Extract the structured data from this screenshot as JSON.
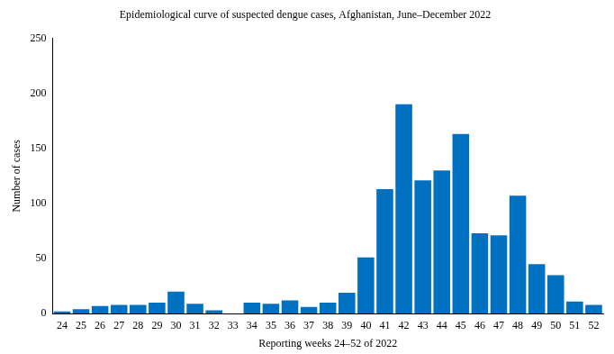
{
  "chart_data": {
    "type": "bar",
    "title": "Epidemiological curve of suspected dengue cases, Afghanistan, June–December 2022",
    "x_label": "Reporting weeks 24–52 of 2022",
    "y_label": "Number of cases",
    "categories": [
      "24",
      "25",
      "26",
      "27",
      "28",
      "29",
      "30",
      "31",
      "32",
      "33",
      "34",
      "35",
      "36",
      "37",
      "38",
      "39",
      "40",
      "41",
      "42",
      "43",
      "44",
      "45",
      "46",
      "47",
      "48",
      "49",
      "50",
      "51",
      "52"
    ],
    "values": [
      2,
      4,
      7,
      8,
      8,
      10,
      20,
      9,
      3,
      0,
      10,
      9,
      12,
      6,
      10,
      19,
      51,
      113,
      190,
      121,
      130,
      163,
      73,
      71,
      107,
      45,
      35,
      11,
      8
    ],
    "color": "#0070c0",
    "ylim": [
      0,
      250
    ],
    "yticks": [
      0,
      50,
      100,
      150,
      200,
      250
    ],
    "grid": false
  }
}
